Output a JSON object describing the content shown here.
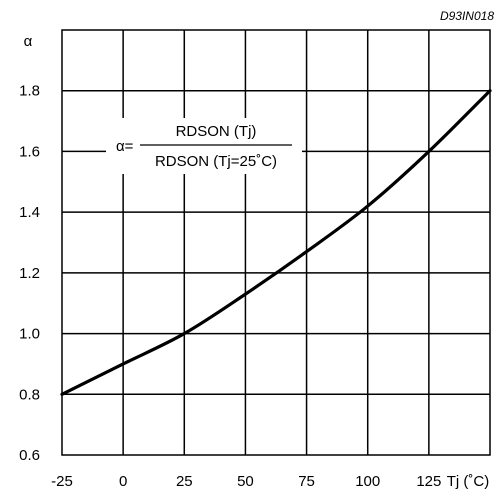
{
  "figure_code": "D93IN018",
  "chart_data": {
    "type": "line",
    "x": [
      -25,
      0,
      25,
      50,
      75,
      100,
      125,
      150
    ],
    "series": [
      {
        "values": [
          0.8,
          0.9,
          1.0,
          1.13,
          1.27,
          1.42,
          1.6,
          1.8
        ]
      }
    ],
    "xlim": [
      -25,
      150
    ],
    "ylim": [
      0.6,
      2.0
    ],
    "x_ticks": [
      "-25",
      "0",
      "25",
      "50",
      "75",
      "100",
      "125"
    ],
    "y_ticks": [
      "0.6",
      "0.8",
      "1.0",
      "1.2",
      "1.4",
      "1.6",
      "1.8"
    ],
    "xlabel": "Tj (˚C)",
    "ylabel": "α",
    "grid": true,
    "formula": {
      "lhs": "α=",
      "numerator": "RDSON (Tj)",
      "denominator": "RDSON (Tj=25˚C)"
    }
  }
}
